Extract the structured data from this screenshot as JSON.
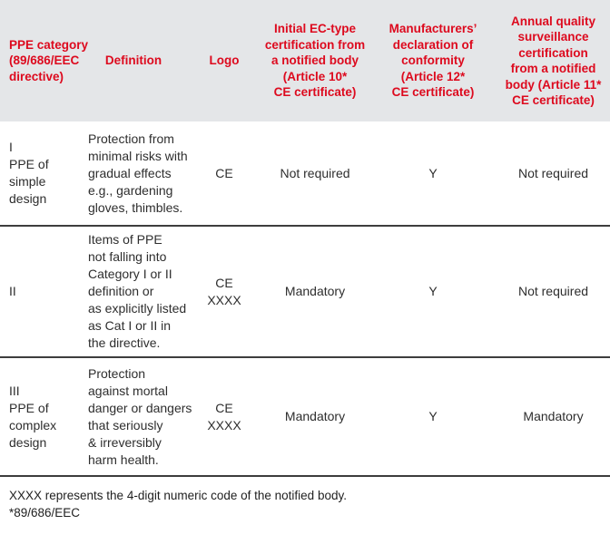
{
  "theme": {
    "header_bg": "#e4e6e8",
    "header_text_color": "#dd0a1e",
    "body_text_color": "#2e2e2e",
    "separator_color": "#3d3d3d"
  },
  "table": {
    "columns": [
      {
        "id": "category",
        "label": "PPE category\n(89/686/EEC\ndirective)"
      },
      {
        "id": "definition",
        "label": "Definition"
      },
      {
        "id": "logo",
        "label": "Logo"
      },
      {
        "id": "initial_cert",
        "label": "Initial EC-type\ncertification from\na notified body\n(Article 10*\nCE certificate)"
      },
      {
        "id": "manu_decl",
        "label": "Manufacturers’\ndeclaration of\nconformity\n(Article 12*\nCE certificate)"
      },
      {
        "id": "annual_cert",
        "label": "Annual quality\nsurveillance\ncertification\nfrom a notified\nbody (Article 11*\nCE certificate)"
      }
    ],
    "rows": [
      {
        "category": "I\nPPE of\nsimple\ndesign",
        "definition": "Protection from\nminimal risks with\ngradual effects\ne.g., gardening\ngloves, thimbles.",
        "logo": "CE",
        "initial_cert": "Not required",
        "manu_decl": "Y",
        "annual_cert": "Not required"
      },
      {
        "category": "II",
        "definition": "Items of PPE\nnot falling into\nCategory I or II\ndefinition or\nas explicitly listed\nas Cat I or II in\nthe directive.",
        "logo": "CE\nXXXX",
        "initial_cert": "Mandatory",
        "manu_decl": "Y",
        "annual_cert": "Not required"
      },
      {
        "category": "III\nPPE of\ncomplex\ndesign",
        "definition": "Protection\nagainst mortal\ndanger or dangers\nthat seriously\n& irreversibly\nharm health.",
        "logo": "CE\nXXXX",
        "initial_cert": "Mandatory",
        "manu_decl": "Y",
        "annual_cert": "Mandatory"
      }
    ]
  },
  "footnotes": {
    "line1": "XXXX represents the 4-digit numeric code of the notified body.",
    "line2": "*89/686/EEC"
  }
}
